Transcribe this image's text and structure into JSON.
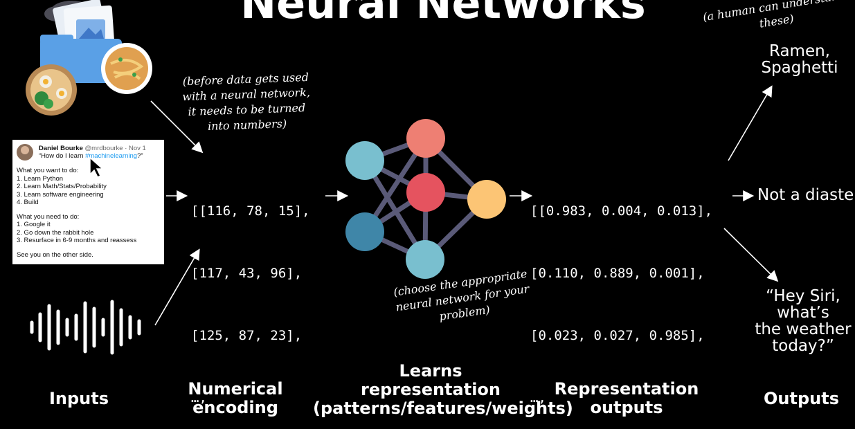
{
  "title": "Neural Networks",
  "annotations": {
    "human": "(a human can understand these)",
    "before": [
      "(before data gets used",
      "with a neural network,",
      "it needs to be turned",
      "into numbers)"
    ],
    "choose": [
      "(choose the appropriate",
      "neural network for your",
      "problem)"
    ]
  },
  "tweet": {
    "name": "Daniel Bourke",
    "handle": "@mrdbourke · Nov 1",
    "quote_pre": "“How do I learn ",
    "quote_tag": "#machinelearning",
    "quote_post": "?”",
    "want_title": "What you want to do:",
    "want_items": [
      "1. Learn Python",
      "2. Learn Math/Stats/Probability",
      "3. Learn software engineering",
      "4. Build"
    ],
    "need_title": "What you need to do:",
    "need_items": [
      "1. Google it",
      "2. Go down the rabbit hole",
      "3. Resurface in 6-9 months and reassess"
    ],
    "footer": "See you on the other side."
  },
  "encoding_rows": [
    "[[116, 78, 15],",
    "[117, 43, 96],",
    "[125, 87, 23],",
    "…,"
  ],
  "output_rows": [
    "[[0.983, 0.004, 0.013],",
    "[0.110, 0.889, 0.001],",
    "[0.023, 0.027, 0.985],",
    "…,"
  ],
  "outputs": {
    "top": [
      "Ramen,",
      "Spaghetti"
    ],
    "middle": "Not a diaster",
    "bottom": [
      "“Hey Siri, what’s",
      "the weather",
      "today?”"
    ]
  },
  "sections": {
    "inputs": "Inputs",
    "encoding": [
      "Numerical",
      "encoding"
    ],
    "learns": [
      "Learns",
      "representation",
      "(patterns/features/weights)"
    ],
    "rep_outputs": [
      "Representation",
      "outputs"
    ],
    "outputs": "Outputs"
  },
  "colors": {
    "node_teal": "#79bfcf",
    "node_salmon": "#ee7f73",
    "node_red": "#e5535f",
    "node_orange": "#fcc575",
    "node_blue": "#3f86a8",
    "edge": "#5a5a78"
  },
  "icons": {
    "food": "folder-with-food-icon",
    "audio": "audio-waveform-icon",
    "cursor": "mouse-cursor-icon"
  }
}
